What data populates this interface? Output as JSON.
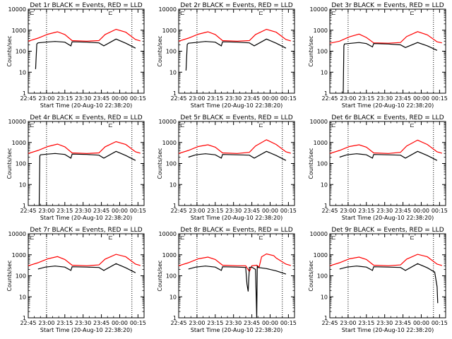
{
  "figure": {
    "ylabel": "Counts/sec",
    "xlabel": "Start Time (20-Aug-10 22:38:20)",
    "xticks": [
      "22:45",
      "23:00",
      "23:15",
      "23:30",
      "23:45",
      "00:00",
      "00:15"
    ],
    "yticks": [
      "1",
      "10",
      "100",
      "1000",
      "10000"
    ],
    "corner_marks": [
      "⊏",
      "⊏"
    ],
    "colors": {
      "events": "#000000",
      "lld": "#ff0000",
      "axes": "#000000"
    }
  },
  "chart_data": [
    {
      "type": "line",
      "title": "Det 1r BLACK = Events, RED = LLD",
      "x_unit": "minutes from 22:45",
      "ylim": [
        1,
        10000
      ],
      "log_y": true,
      "vlines": [
        15,
        85
      ],
      "series": [
        {
          "x": [
            0,
            8,
            16,
            24,
            30,
            36,
            48,
            58,
            63,
            72,
            80,
            88,
            92
          ],
          "y": [
            300,
            420,
            640,
            840,
            620,
            320,
            300,
            320,
            620,
            1100,
            800,
            360,
            310
          ]
        },
        {
          "x": [
            6,
            7,
            8,
            14,
            22,
            30,
            35,
            36,
            48,
            58,
            62,
            72,
            80,
            88
          ],
          "y": [
            14,
            220,
            250,
            270,
            290,
            270,
            180,
            280,
            270,
            250,
            180,
            380,
            240,
            140
          ]
        }
      ]
    },
    {
      "type": "line",
      "title": "Det 2r BLACK = Events, RED = LLD",
      "x_unit": "minutes from 22:45",
      "ylim": [
        1,
        10000
      ],
      "log_y": true,
      "vlines": [
        15,
        85
      ],
      "series": [
        {
          "x": [
            0,
            8,
            16,
            24,
            30,
            36,
            48,
            58,
            63,
            72,
            80,
            88,
            92
          ],
          "y": [
            300,
            420,
            640,
            840,
            620,
            320,
            300,
            320,
            620,
            1100,
            800,
            360,
            310
          ]
        },
        {
          "x": [
            6,
            7,
            8,
            14,
            22,
            30,
            35,
            36,
            48,
            58,
            62,
            72,
            80,
            88
          ],
          "y": [
            12,
            210,
            240,
            260,
            290,
            270,
            180,
            280,
            270,
            250,
            180,
            380,
            240,
            140
          ]
        }
      ]
    },
    {
      "type": "line",
      "title": "Det 3r BLACK = Events, RED = LLD",
      "x_unit": "minutes from 22:45",
      "ylim": [
        1,
        10000
      ],
      "log_y": true,
      "vlines": [
        15,
        85
      ],
      "series": [
        {
          "x": [
            0,
            8,
            16,
            24,
            30,
            36,
            48,
            58,
            63,
            72,
            80,
            88,
            92
          ],
          "y": [
            240,
            300,
            480,
            650,
            450,
            250,
            240,
            260,
            500,
            850,
            600,
            280,
            250
          ]
        },
        {
          "x": [
            11,
            11.5,
            12,
            18,
            24,
            30,
            35,
            36,
            48,
            58,
            62,
            72,
            80,
            88
          ],
          "y": [
            1,
            180,
            220,
            240,
            260,
            230,
            160,
            230,
            220,
            200,
            150,
            260,
            180,
            110
          ]
        }
      ]
    },
    {
      "type": "line",
      "title": "Det 4r BLACK = Events, RED = LLD",
      "x_unit": "minutes from 22:45",
      "ylim": [
        1,
        10000
      ],
      "log_y": true,
      "vlines": [
        15,
        85
      ],
      "series": [
        {
          "x": [
            0,
            8,
            16,
            24,
            30,
            36,
            48,
            58,
            63,
            72,
            80,
            88,
            92
          ],
          "y": [
            300,
            420,
            640,
            840,
            620,
            320,
            300,
            320,
            620,
            1100,
            800,
            360,
            310
          ]
        },
        {
          "x": [
            9,
            9.5,
            10,
            16,
            22,
            30,
            35,
            36,
            48,
            58,
            62,
            72,
            80,
            88
          ],
          "y": [
            1,
            230,
            260,
            280,
            300,
            270,
            180,
            280,
            270,
            250,
            180,
            380,
            240,
            140
          ]
        }
      ]
    },
    {
      "type": "line",
      "title": "Det 5r BLACK = Events, RED = LLD",
      "x_unit": "minutes from 22:45",
      "ylim": [
        1,
        10000
      ],
      "log_y": true,
      "vlines": [
        15,
        85
      ],
      "series": [
        {
          "x": [
            0,
            8,
            16,
            24,
            30,
            36,
            48,
            58,
            63,
            72,
            80,
            88,
            92
          ],
          "y": [
            300,
            420,
            640,
            780,
            600,
            320,
            300,
            340,
            680,
            1350,
            800,
            360,
            310
          ]
        },
        {
          "x": [
            8,
            14,
            22,
            30,
            35,
            36,
            48,
            58,
            62,
            72,
            80,
            88
          ],
          "y": [
            200,
            260,
            290,
            260,
            180,
            270,
            260,
            250,
            180,
            380,
            240,
            140
          ]
        }
      ]
    },
    {
      "type": "line",
      "title": "Det 6r BLACK = Events, RED = LLD",
      "x_unit": "minutes from 22:45",
      "ylim": [
        1,
        10000
      ],
      "log_y": true,
      "vlines": [
        15,
        85
      ],
      "series": [
        {
          "x": [
            0,
            8,
            16,
            24,
            30,
            36,
            48,
            58,
            63,
            72,
            80,
            88,
            92
          ],
          "y": [
            300,
            420,
            640,
            780,
            600,
            320,
            300,
            340,
            680,
            1300,
            800,
            360,
            310
          ]
        },
        {
          "x": [
            8,
            14,
            22,
            30,
            35,
            36,
            48,
            58,
            62,
            72,
            80,
            88
          ],
          "y": [
            200,
            260,
            290,
            260,
            180,
            270,
            260,
            250,
            180,
            380,
            240,
            140
          ]
        }
      ]
    },
    {
      "type": "line",
      "title": "Det 7r BLACK = Events, RED = LLD",
      "x_unit": "minutes from 22:45",
      "ylim": [
        1,
        10000
      ],
      "log_y": true,
      "vlines": [
        15,
        85
      ],
      "series": [
        {
          "x": [
            0,
            8,
            16,
            24,
            30,
            36,
            48,
            58,
            63,
            72,
            80,
            88,
            92
          ],
          "y": [
            300,
            420,
            640,
            820,
            600,
            320,
            300,
            330,
            620,
            1050,
            800,
            360,
            310
          ]
        },
        {
          "x": [
            8,
            14,
            22,
            30,
            35,
            36,
            48,
            58,
            62,
            72,
            80,
            88
          ],
          "y": [
            210,
            260,
            290,
            260,
            180,
            270,
            260,
            250,
            180,
            380,
            240,
            140
          ]
        }
      ]
    },
    {
      "type": "line",
      "title": "Det 8r BLACK = Events, RED = LLD",
      "x_unit": "minutes from 22:45",
      "ylim": [
        1,
        10000
      ],
      "log_y": true,
      "vlines": [
        15,
        85
      ],
      "series": [
        {
          "x": [
            0,
            8,
            16,
            24,
            30,
            36,
            48,
            55,
            58,
            60,
            64,
            66,
            68,
            72,
            78,
            80,
            88,
            92
          ],
          "y": [
            300,
            420,
            640,
            780,
            600,
            320,
            300,
            300,
            160,
            300,
            320,
            260,
            800,
            1100,
            900,
            700,
            360,
            310
          ]
        },
        {
          "x": [
            8,
            14,
            22,
            30,
            35,
            36,
            48,
            55,
            56,
            57,
            58,
            60,
            63,
            64,
            64.5,
            65,
            72,
            80,
            88
          ],
          "y": [
            210,
            260,
            290,
            260,
            180,
            270,
            260,
            250,
            40,
            18,
            250,
            260,
            200,
            1,
            300,
            250,
            220,
            170,
            120
          ]
        }
      ]
    },
    {
      "type": "line",
      "title": "Det 9r BLACK = Events, RED = LLD",
      "x_unit": "minutes from 22:45",
      "ylim": [
        1,
        10000
      ],
      "log_y": true,
      "vlines": [
        15,
        85
      ],
      "series": [
        {
          "x": [
            0,
            8,
            16,
            24,
            30,
            36,
            48,
            58,
            63,
            72,
            80,
            88,
            92
          ],
          "y": [
            300,
            420,
            640,
            780,
            600,
            320,
            300,
            330,
            620,
            1050,
            800,
            360,
            310
          ]
        },
        {
          "x": [
            8,
            14,
            22,
            30,
            35,
            36,
            48,
            58,
            62,
            72,
            80,
            86,
            88,
            88.5
          ],
          "y": [
            210,
            260,
            290,
            260,
            180,
            270,
            260,
            250,
            180,
            380,
            240,
            150,
            30,
            5
          ]
        }
      ]
    }
  ]
}
